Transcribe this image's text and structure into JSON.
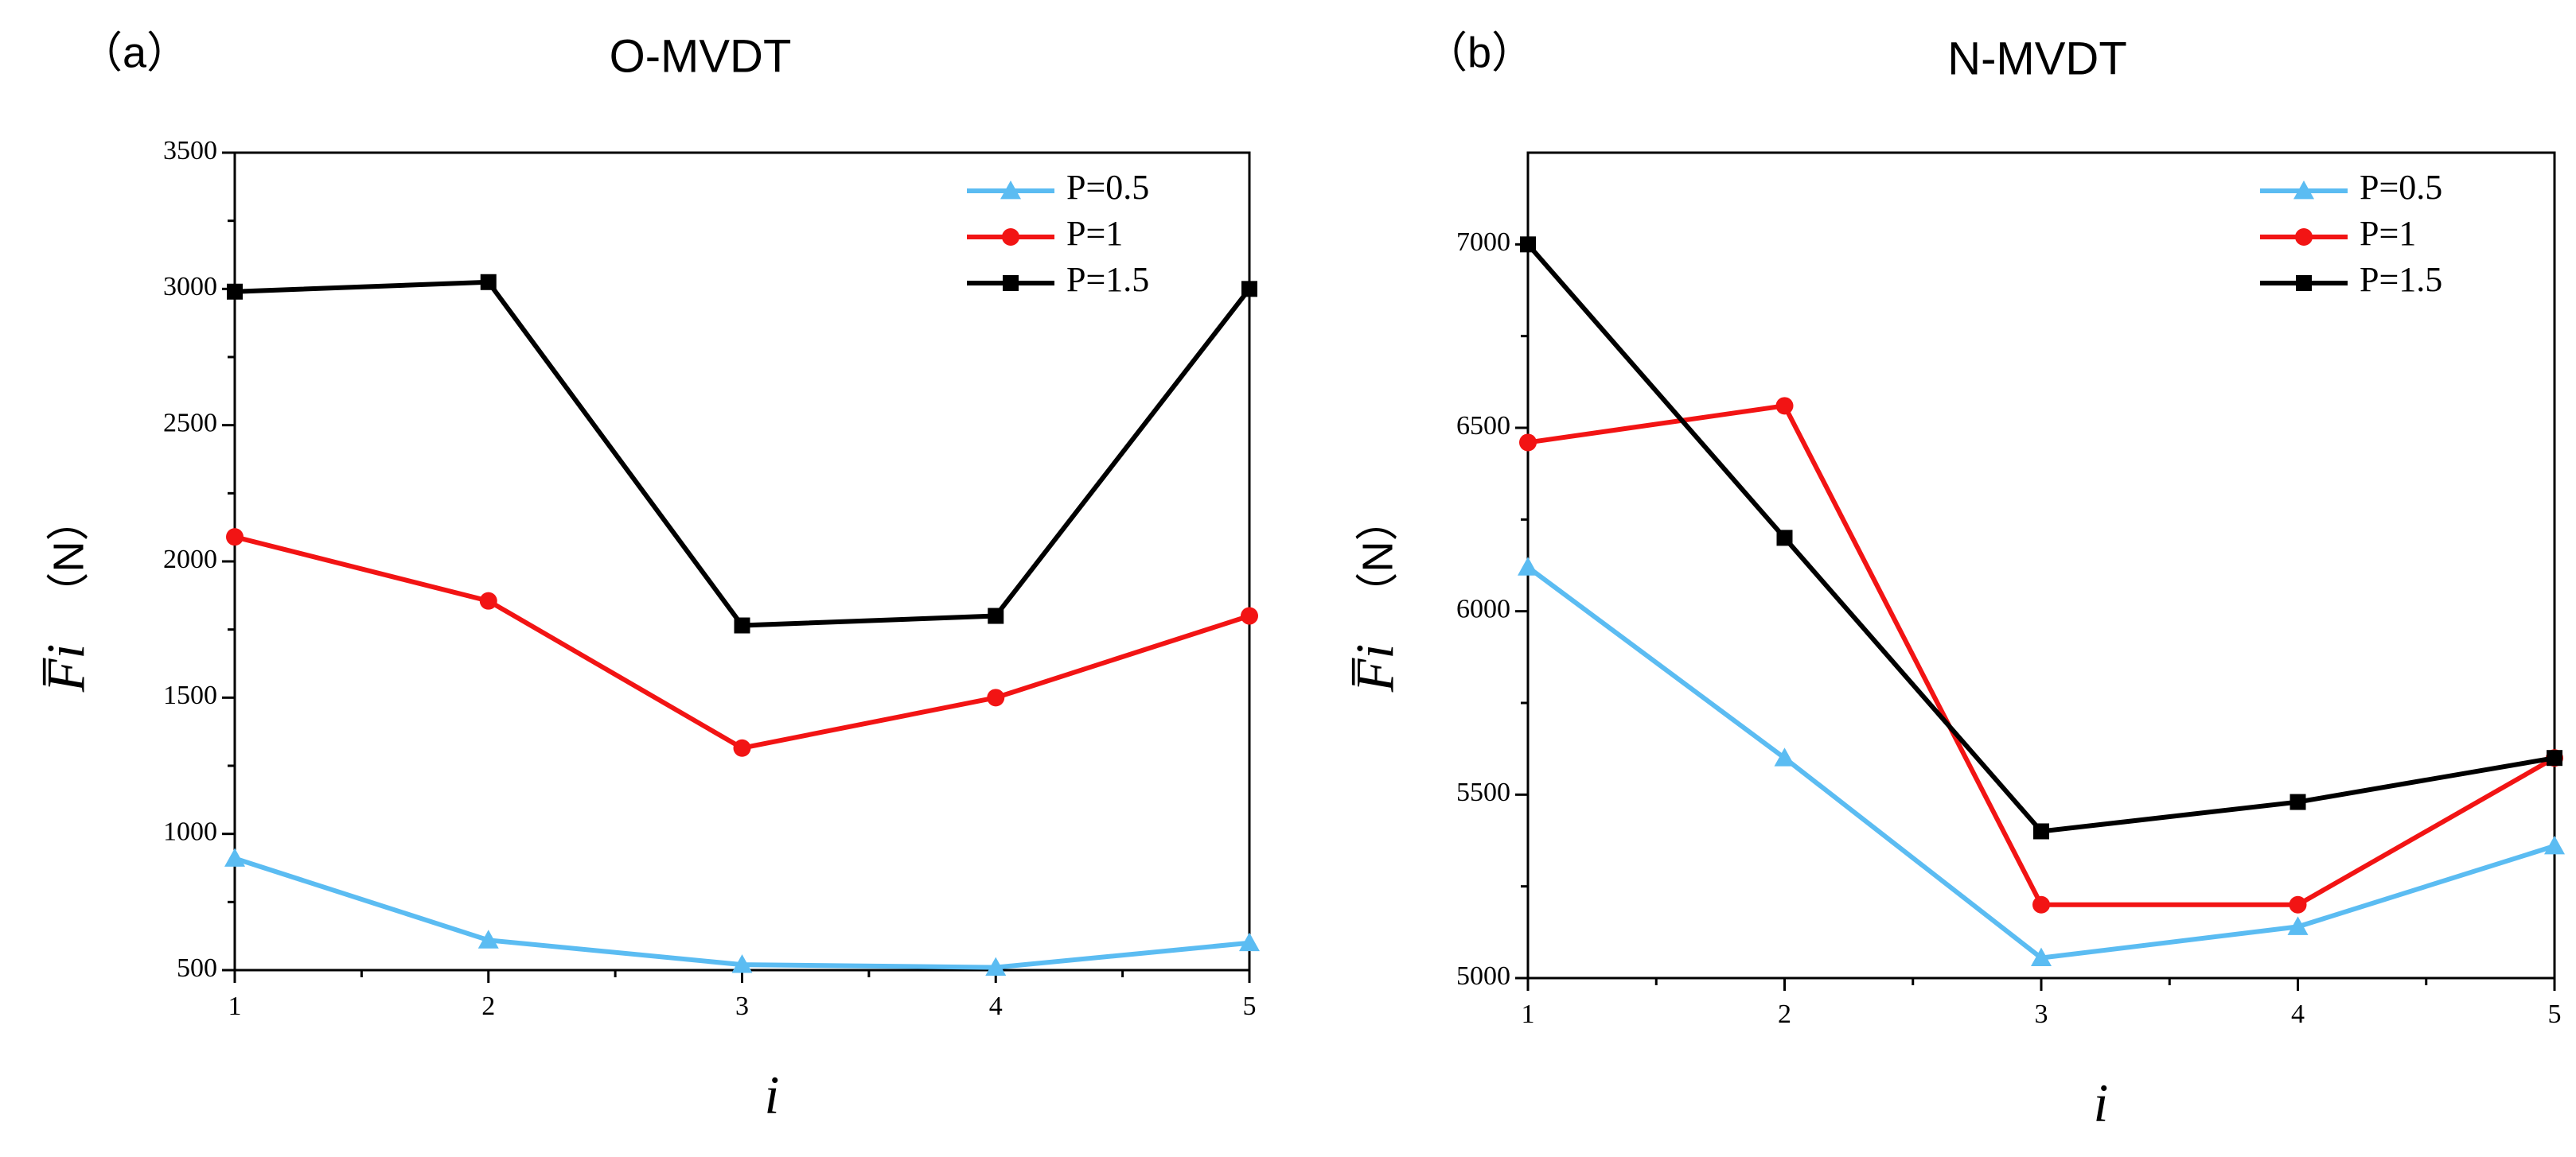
{
  "chart_data": [
    {
      "type": "line",
      "panel_label": "（a）",
      "title": "O-MVDT",
      "xlabel": "i",
      "ylabel_symbol": "F̅i",
      "ylabel_unit": "（N）",
      "x": [
        1,
        2,
        3,
        4,
        5
      ],
      "xlim": [
        1,
        5
      ],
      "ylim": [
        500,
        3500
      ],
      "yticks": [
        500,
        1000,
        1500,
        2000,
        2500,
        3000,
        3500
      ],
      "xticks": [
        1,
        2,
        3,
        4,
        5
      ],
      "grid": false,
      "legend_position": "top-right",
      "series": [
        {
          "name": "P=0.5",
          "color": "#5bbcf2",
          "marker": "triangle",
          "values": [
            910,
            610,
            520,
            510,
            600
          ]
        },
        {
          "name": "P=1",
          "color": "#f21414",
          "marker": "circle",
          "values": [
            2090,
            1855,
            1315,
            1500,
            1800
          ]
        },
        {
          "name": "P=1.5",
          "color": "#000000",
          "marker": "square",
          "values": [
            2990,
            3025,
            1765,
            1800,
            3000
          ]
        }
      ]
    },
    {
      "type": "line",
      "panel_label": "（b）",
      "title": "N-MVDT",
      "xlabel": "i",
      "ylabel_symbol": "F̅i",
      "ylabel_unit": "（N）",
      "x": [
        1,
        2,
        3,
        4,
        5
      ],
      "xlim": [
        1,
        5
      ],
      "ylim": [
        5000,
        7250
      ],
      "yticks": [
        5000,
        5500,
        6000,
        6500,
        7000
      ],
      "xticks": [
        1,
        2,
        3,
        4,
        5
      ],
      "grid": false,
      "legend_position": "top-right",
      "series": [
        {
          "name": "P=0.5",
          "color": "#5bbcf2",
          "marker": "triangle",
          "values": [
            6120,
            5600,
            5055,
            5140,
            5360
          ]
        },
        {
          "name": "P=1",
          "color": "#f21414",
          "marker": "circle",
          "values": [
            6460,
            6560,
            5200,
            5200,
            5600
          ]
        },
        {
          "name": "P=1.5",
          "color": "#000000",
          "marker": "square",
          "values": [
            7000,
            6200,
            5400,
            5480,
            5600
          ]
        }
      ]
    }
  ]
}
